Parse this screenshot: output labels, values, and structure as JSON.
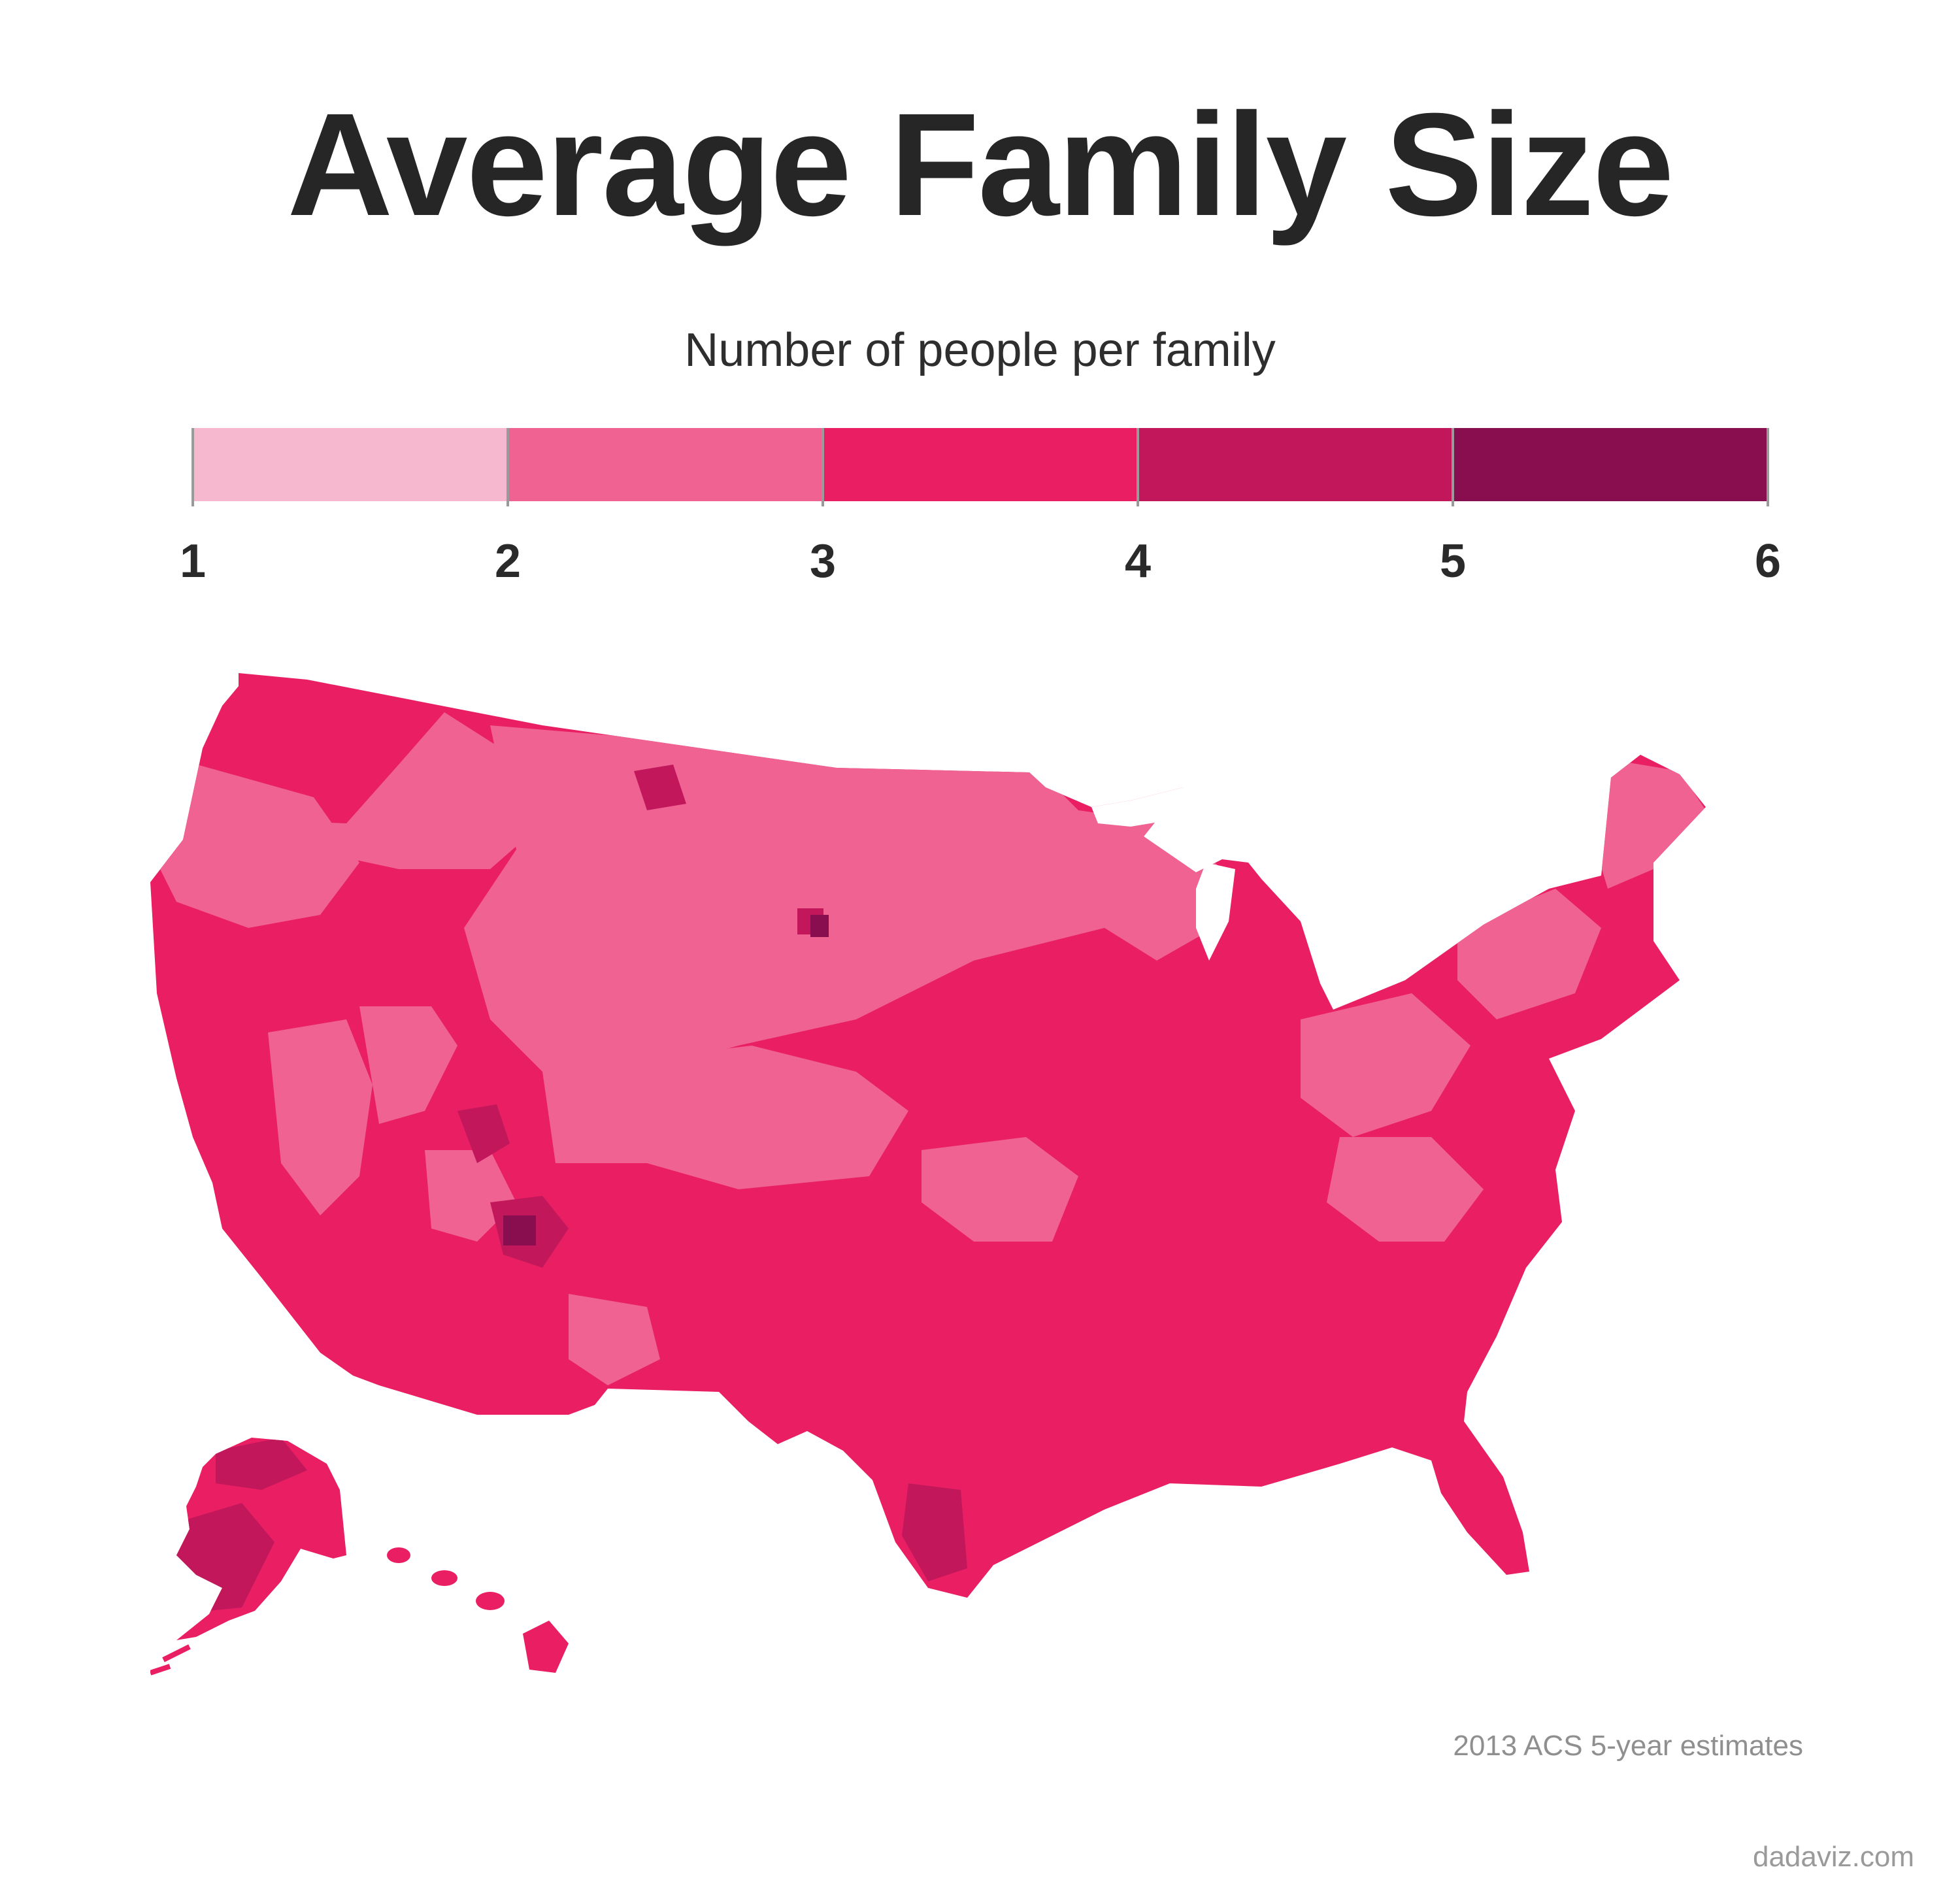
{
  "title": "Average Family Size",
  "subtitle": "Number of people per family",
  "legend": {
    "labels": [
      "1",
      "2",
      "3",
      "4",
      "5",
      "6"
    ],
    "colors": [
      "#f5b8cf",
      "#ef6292",
      "#e91e63",
      "#c2185b",
      "#880e4f"
    ]
  },
  "map": {
    "palette": {
      "1-2": "#f5b8cf",
      "2-3": "#ef6292",
      "3-4": "#e91e63",
      "4-5": "#c2185b",
      "5-6": "#880e4f"
    },
    "background_class": "3-4",
    "patch_classes": {
      "west_northwest": "2-3",
      "northern_plains": "2-3",
      "midwest_east": "2-3",
      "appalachia": "2-3",
      "new_england_north": "2-3",
      "nevada_utah_fringe": "2-3",
      "four_corners": "4-5",
      "south_texas": "4-5",
      "southwest_alaska": "4-5",
      "isolated_counties": "5-6"
    }
  },
  "source_note": "2013 ACS 5-year estimates",
  "credit": "dadaviz.com"
}
